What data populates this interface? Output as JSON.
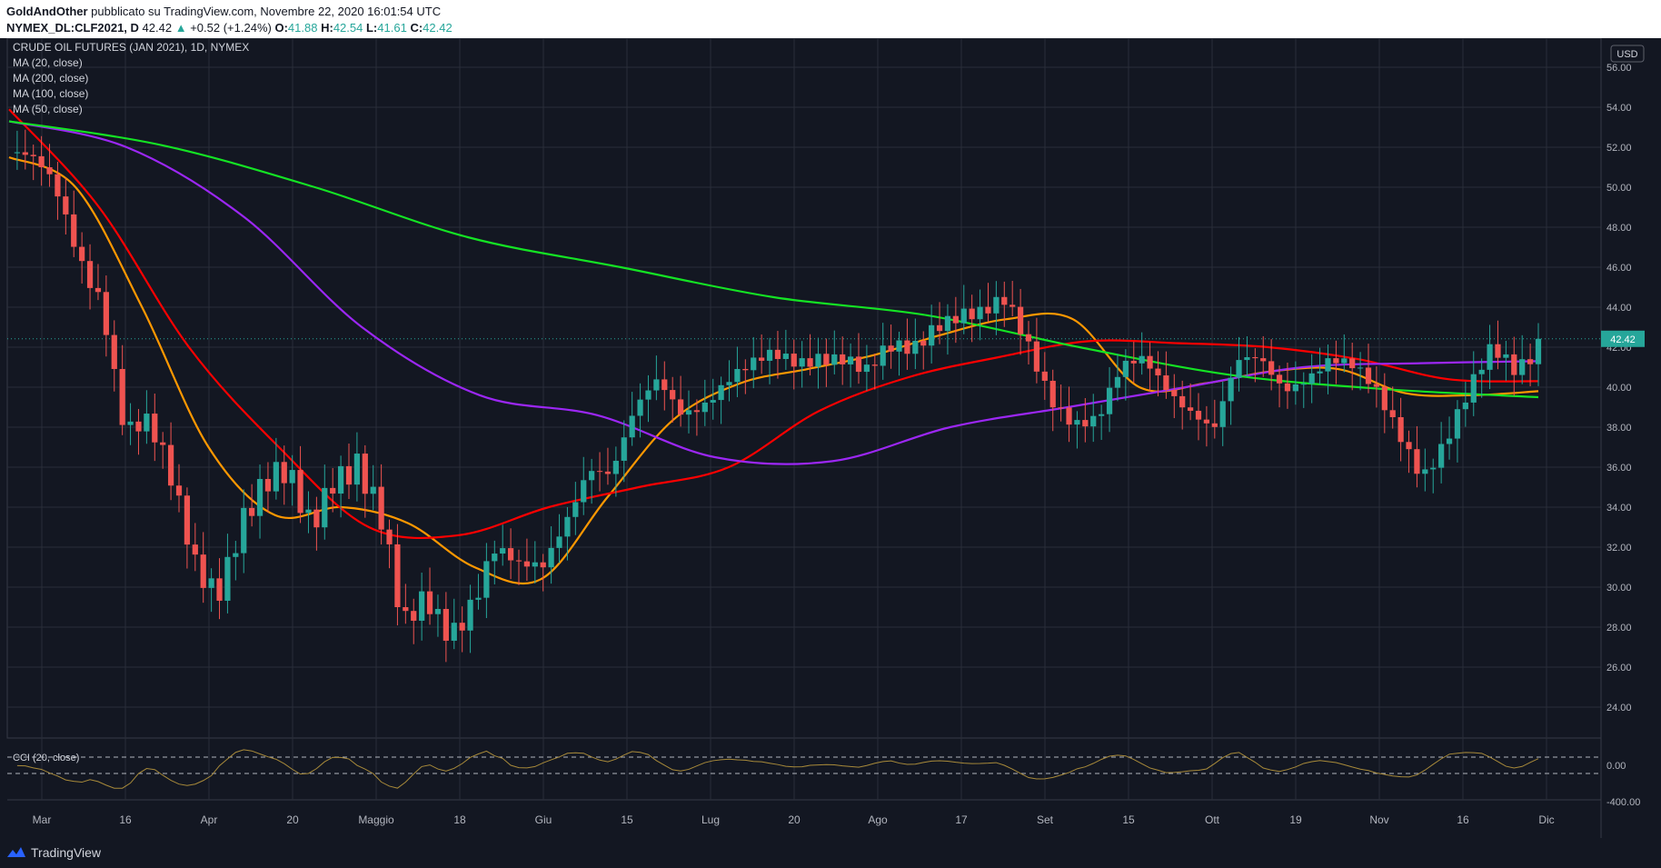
{
  "header": {
    "author": "GoldAndOther",
    "published_text": "pubblicato su TradingView.com, Novembre 22, 2020 16:01:54 UTC",
    "symbol": "NYMEX_DL:CLF2021, D",
    "price": "42.42",
    "change": "+0.52 (+1.24%)",
    "ohlc": [
      {
        "label": "O:",
        "value": "41.88"
      },
      {
        "label": "H:",
        "value": "42.54"
      },
      {
        "label": "L:",
        "value": "41.61"
      },
      {
        "label": "C:",
        "value": "42.42"
      }
    ]
  },
  "legend": {
    "title": "CRUDE OIL FUTURES (JAN 2021), 1D, NYMEX",
    "items": [
      "MA (20, close)",
      "MA (200, close)",
      "MA (100, close)",
      "MA (50, close)"
    ]
  },
  "currency": "USD",
  "last_price_label": "42.42",
  "cci_label": "CCI (20, close)",
  "footer": {
    "brand": "TradingView"
  },
  "colors": {
    "background": "#131722",
    "up": "#26a69a",
    "down": "#ef5350",
    "ma20": "#ff9800",
    "ma50": "#ff0000",
    "ma100": "#9c27f5",
    "ma200": "#14e324",
    "cci": "#a88a3a"
  },
  "chart_data": {
    "type": "candlestick",
    "ylim": [
      23,
      57
    ],
    "y_ticks": [
      "24.00",
      "26.00",
      "28.00",
      "30.00",
      "32.00",
      "34.00",
      "36.00",
      "38.00",
      "40.00",
      "42.00",
      "44.00",
      "46.00",
      "48.00",
      "50.00",
      "52.00",
      "54.00",
      "56.00"
    ],
    "x_labels": [
      "Mar",
      "16",
      "Apr",
      "20",
      "Maggio",
      "18",
      "Giu",
      "15",
      "Lug",
      "20",
      "Ago",
      "17",
      "Set",
      "15",
      "Ott",
      "19",
      "Nov",
      "16",
      "Dic"
    ],
    "cci_ticks": [
      "0.00",
      "-400.00"
    ],
    "key_closes": [
      51.7,
      50.5,
      49.3,
      47.0,
      45.3,
      38.0,
      37.4,
      34.6,
      31.5,
      30.7,
      33.6,
      34.4,
      34.8,
      33.1,
      36.4,
      36.8,
      33.2,
      27.0,
      29.3,
      28.5,
      30.0,
      31.8,
      30.6,
      30.8,
      33.6,
      36.4,
      35.6,
      38.4,
      40.1,
      39.0,
      39.6,
      40.4,
      40.7,
      41.3,
      41.4,
      42.0,
      41.6,
      40.4,
      41.6,
      42.0,
      43.6,
      43.9,
      43.4,
      43.9,
      42.0,
      39.8,
      38.5,
      38.2,
      40.5,
      41.3,
      40.3,
      39.2,
      37.8,
      40.8,
      41.2,
      40.2,
      40.9,
      41.4,
      40.6,
      39.5,
      37.9,
      36.0,
      37.4,
      39.4,
      41.6,
      41.0,
      42.42
    ],
    "series": [
      {
        "name": "MA (20, close)",
        "values": [
          51.5,
          50.0,
          44.0,
          37.0,
          33.6,
          34.0,
          33.2,
          31.0,
          30.4,
          34.5,
          38.4,
          40.2,
          40.9,
          41.6,
          42.6,
          43.4,
          43.4,
          40.0,
          40.2,
          40.8,
          40.9,
          39.7,
          39.6,
          39.8
        ]
      },
      {
        "name": "MA (50, close)",
        "values": [
          53.9,
          49.0,
          42.0,
          37.0,
          33.0,
          32.6,
          34.0,
          35.0,
          36.0,
          38.8,
          40.5,
          41.5,
          42.3,
          42.2,
          42.0,
          41.4,
          40.4,
          40.3
        ]
      },
      {
        "name": "MA (100, close)",
        "values": [
          53.3,
          52.0,
          48.5,
          43.0,
          39.6,
          38.6,
          36.5,
          36.3,
          38.0,
          39.0,
          40.0,
          41.0,
          41.2,
          41.3
        ]
      },
      {
        "name": "MA (200, close)",
        "values": [
          53.3,
          52.1,
          50.0,
          47.5,
          46.0,
          44.5,
          43.6,
          42.0,
          40.6,
          39.9,
          39.5
        ]
      }
    ]
  }
}
